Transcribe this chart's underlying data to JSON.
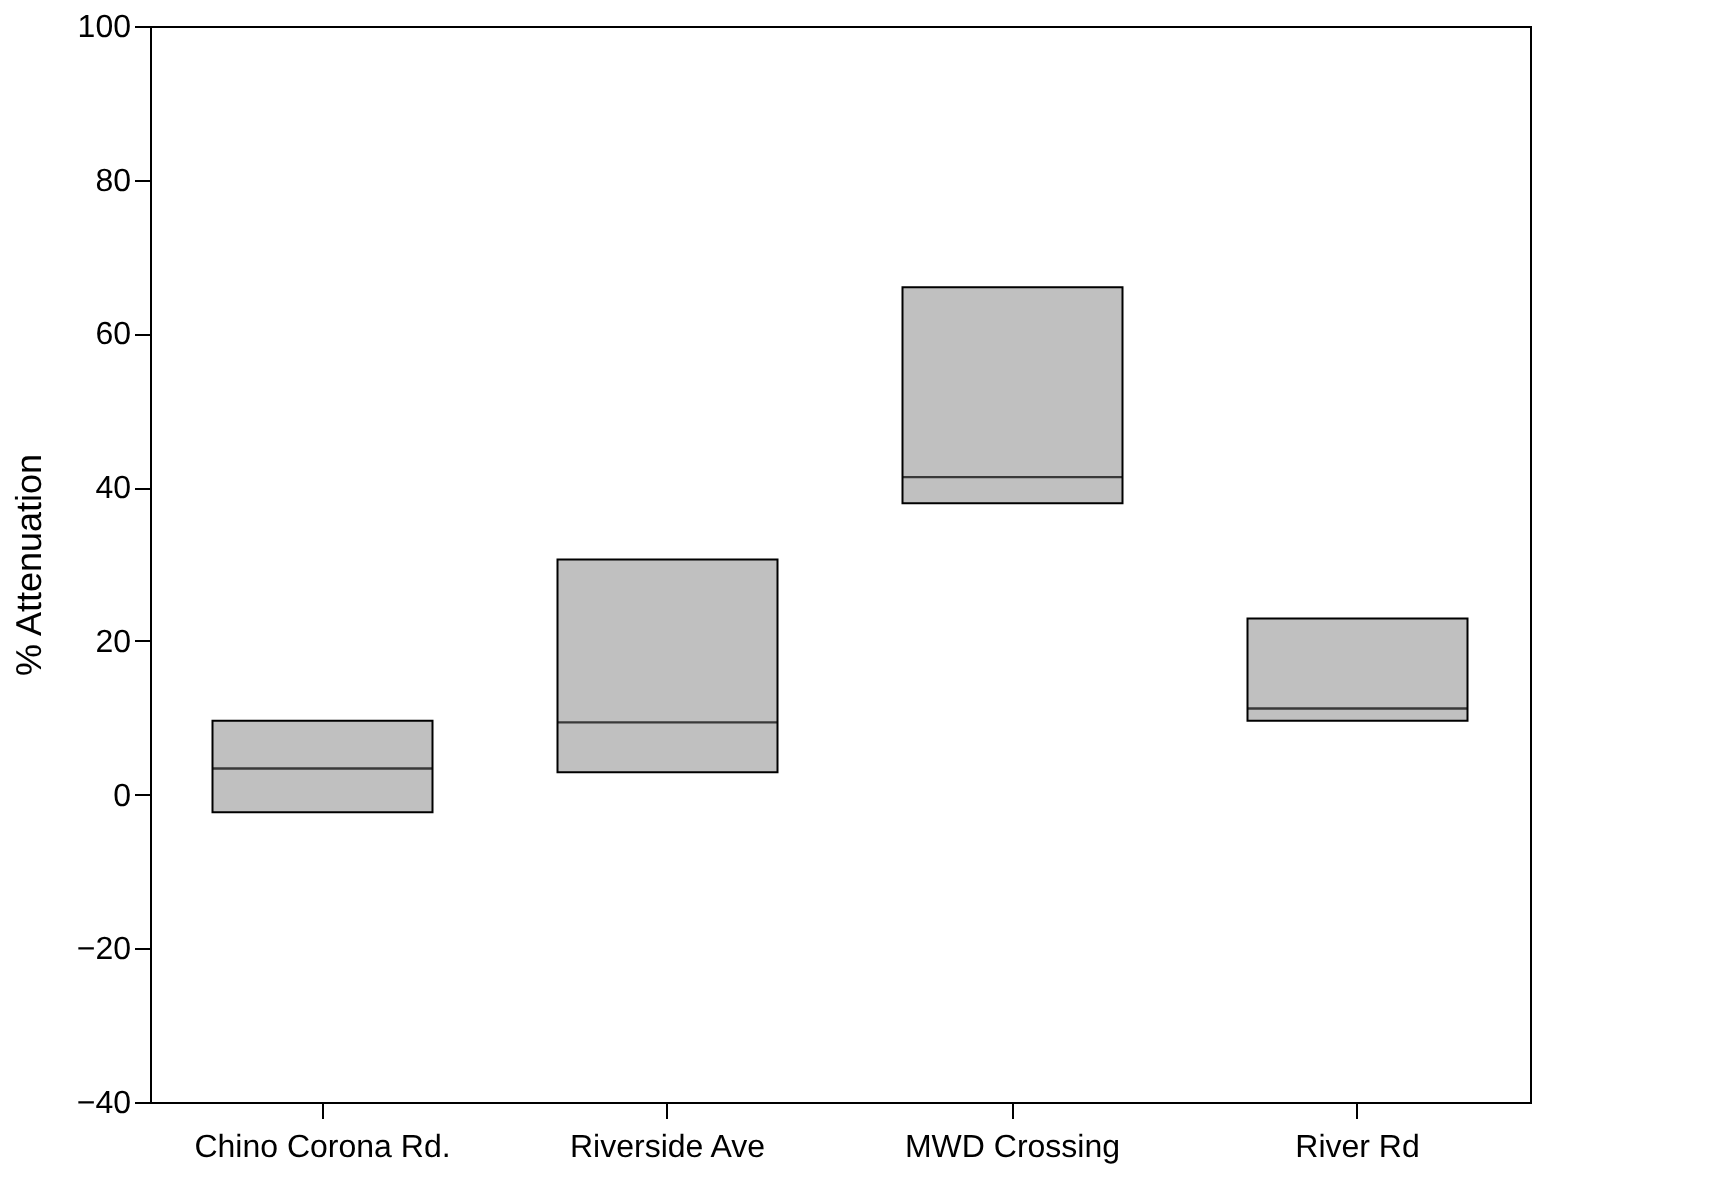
{
  "chart_data": {
    "type": "box",
    "ylabel": "% Attenuation",
    "categories": [
      "Chino Corona Rd.",
      "Riverside Ave",
      "MWD Crossing",
      "River Rd"
    ],
    "ylim": [
      -40,
      100
    ],
    "yticks": [
      -40,
      -20,
      0,
      20,
      40,
      60,
      80,
      100
    ],
    "grid": false,
    "series": [
      {
        "color": "#c0c0c0",
        "boxes": [
          {
            "low": -2.3,
            "q1": -2.3,
            "median": 3.4,
            "q3": 9.6,
            "high": 9.6
          },
          {
            "low": 2.9,
            "q1": 2.9,
            "median": 9.4,
            "q3": 30.6,
            "high": 30.6
          },
          {
            "low": 37.9,
            "q1": 37.9,
            "median": 41.3,
            "q3": 66,
            "high": 66
          },
          {
            "low": 9.6,
            "q1": 9.6,
            "median": 11.2,
            "q3": 22.9,
            "high": 22.9
          }
        ]
      }
    ]
  }
}
